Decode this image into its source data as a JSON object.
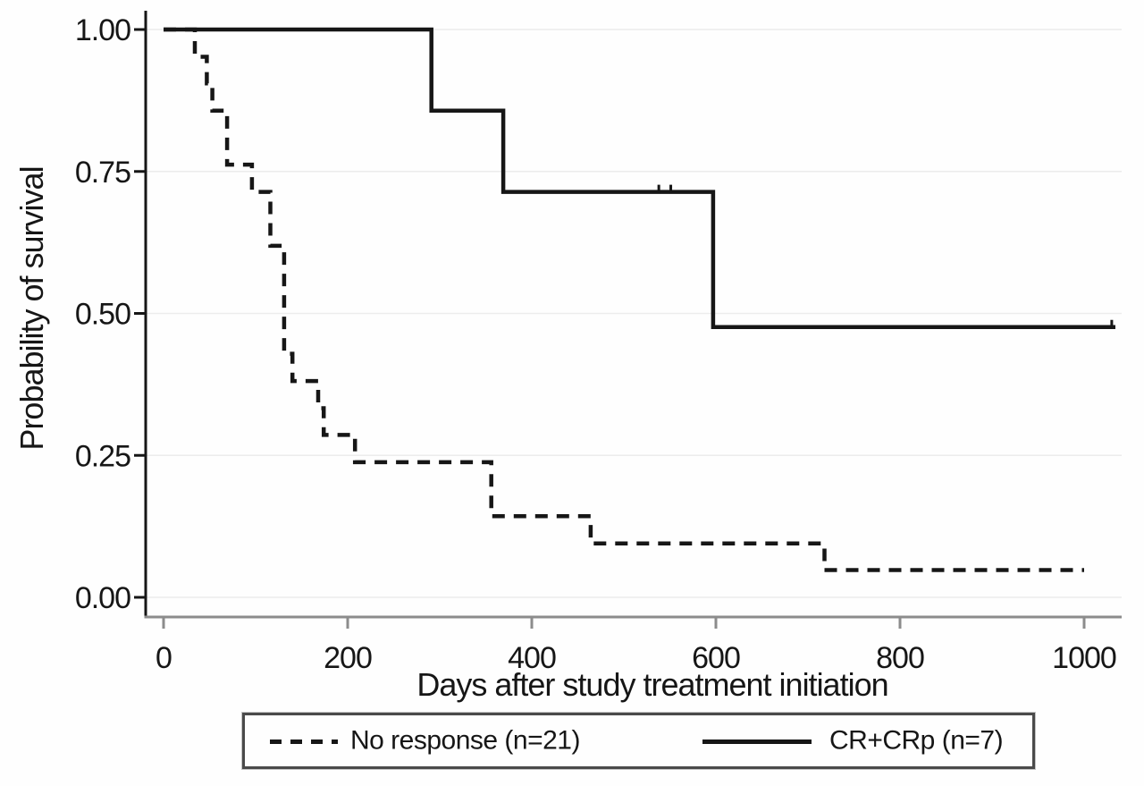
{
  "figure": {
    "background": "#fefefe",
    "curve_color": "#161616",
    "y_axis_color": "#161616",
    "x_axis_color": "#8c8c8c",
    "grid_color": "#ececec",
    "text_color": "#161616",
    "legend_border_color": "#4a4a4a"
  },
  "chart_data": {
    "type": "line",
    "subtype": "kaplan-meier-step",
    "title": "",
    "xlabel": "Days after study treatment initiation",
    "ylabel": "Probability of survival",
    "xlim": [
      0,
      1040
    ],
    "ylim": [
      0.0,
      1.0
    ],
    "grid": "faint-horizontal",
    "x_ticks": [
      0,
      200,
      400,
      600,
      800,
      1000
    ],
    "x_tick_labels": [
      "0",
      "200",
      "400",
      "600",
      "800",
      "1000"
    ],
    "y_ticks": [
      1.0,
      0.75,
      0.5,
      0.25,
      0.0
    ],
    "y_tick_labels": [
      "1.00",
      "0.75",
      "0.50",
      "0.25",
      "0.00"
    ],
    "legend_position": "bottom-boxed",
    "series": [
      {
        "name": "No response (n=21)",
        "style": "dashed",
        "points": [
          [
            0,
            1.0
          ],
          [
            34,
            1.0
          ],
          [
            34,
            0.952
          ],
          [
            47,
            0.952
          ],
          [
            47,
            0.905
          ],
          [
            53,
            0.905
          ],
          [
            53,
            0.857
          ],
          [
            69,
            0.857
          ],
          [
            69,
            0.762
          ],
          [
            96,
            0.762
          ],
          [
            96,
            0.714
          ],
          [
            116,
            0.714
          ],
          [
            116,
            0.619
          ],
          [
            131,
            0.619
          ],
          [
            131,
            0.429
          ],
          [
            140,
            0.429
          ],
          [
            140,
            0.381
          ],
          [
            168,
            0.381
          ],
          [
            168,
            0.333
          ],
          [
            174,
            0.333
          ],
          [
            174,
            0.286
          ],
          [
            208,
            0.286
          ],
          [
            208,
            0.238
          ],
          [
            356,
            0.238
          ],
          [
            356,
            0.143
          ],
          [
            464,
            0.143
          ],
          [
            464,
            0.095
          ],
          [
            718,
            0.095
          ],
          [
            718,
            0.048
          ],
          [
            1000,
            0.048
          ]
        ],
        "censor_marks": []
      },
      {
        "name": "CR+CRp (n=7)",
        "style": "solid",
        "points": [
          [
            0,
            1.0
          ],
          [
            291,
            1.0
          ],
          [
            291,
            0.857
          ],
          [
            369,
            0.857
          ],
          [
            369,
            0.714
          ],
          [
            597,
            0.714
          ],
          [
            597,
            0.476
          ],
          [
            1034,
            0.476
          ]
        ],
        "censor_marks": [
          [
            538,
            0.714
          ],
          [
            551,
            0.714
          ],
          [
            1030,
            0.476
          ]
        ]
      }
    ]
  },
  "legend": {
    "entry_1": "No response (n=21)",
    "entry_2": "CR+CRp (n=7)"
  }
}
